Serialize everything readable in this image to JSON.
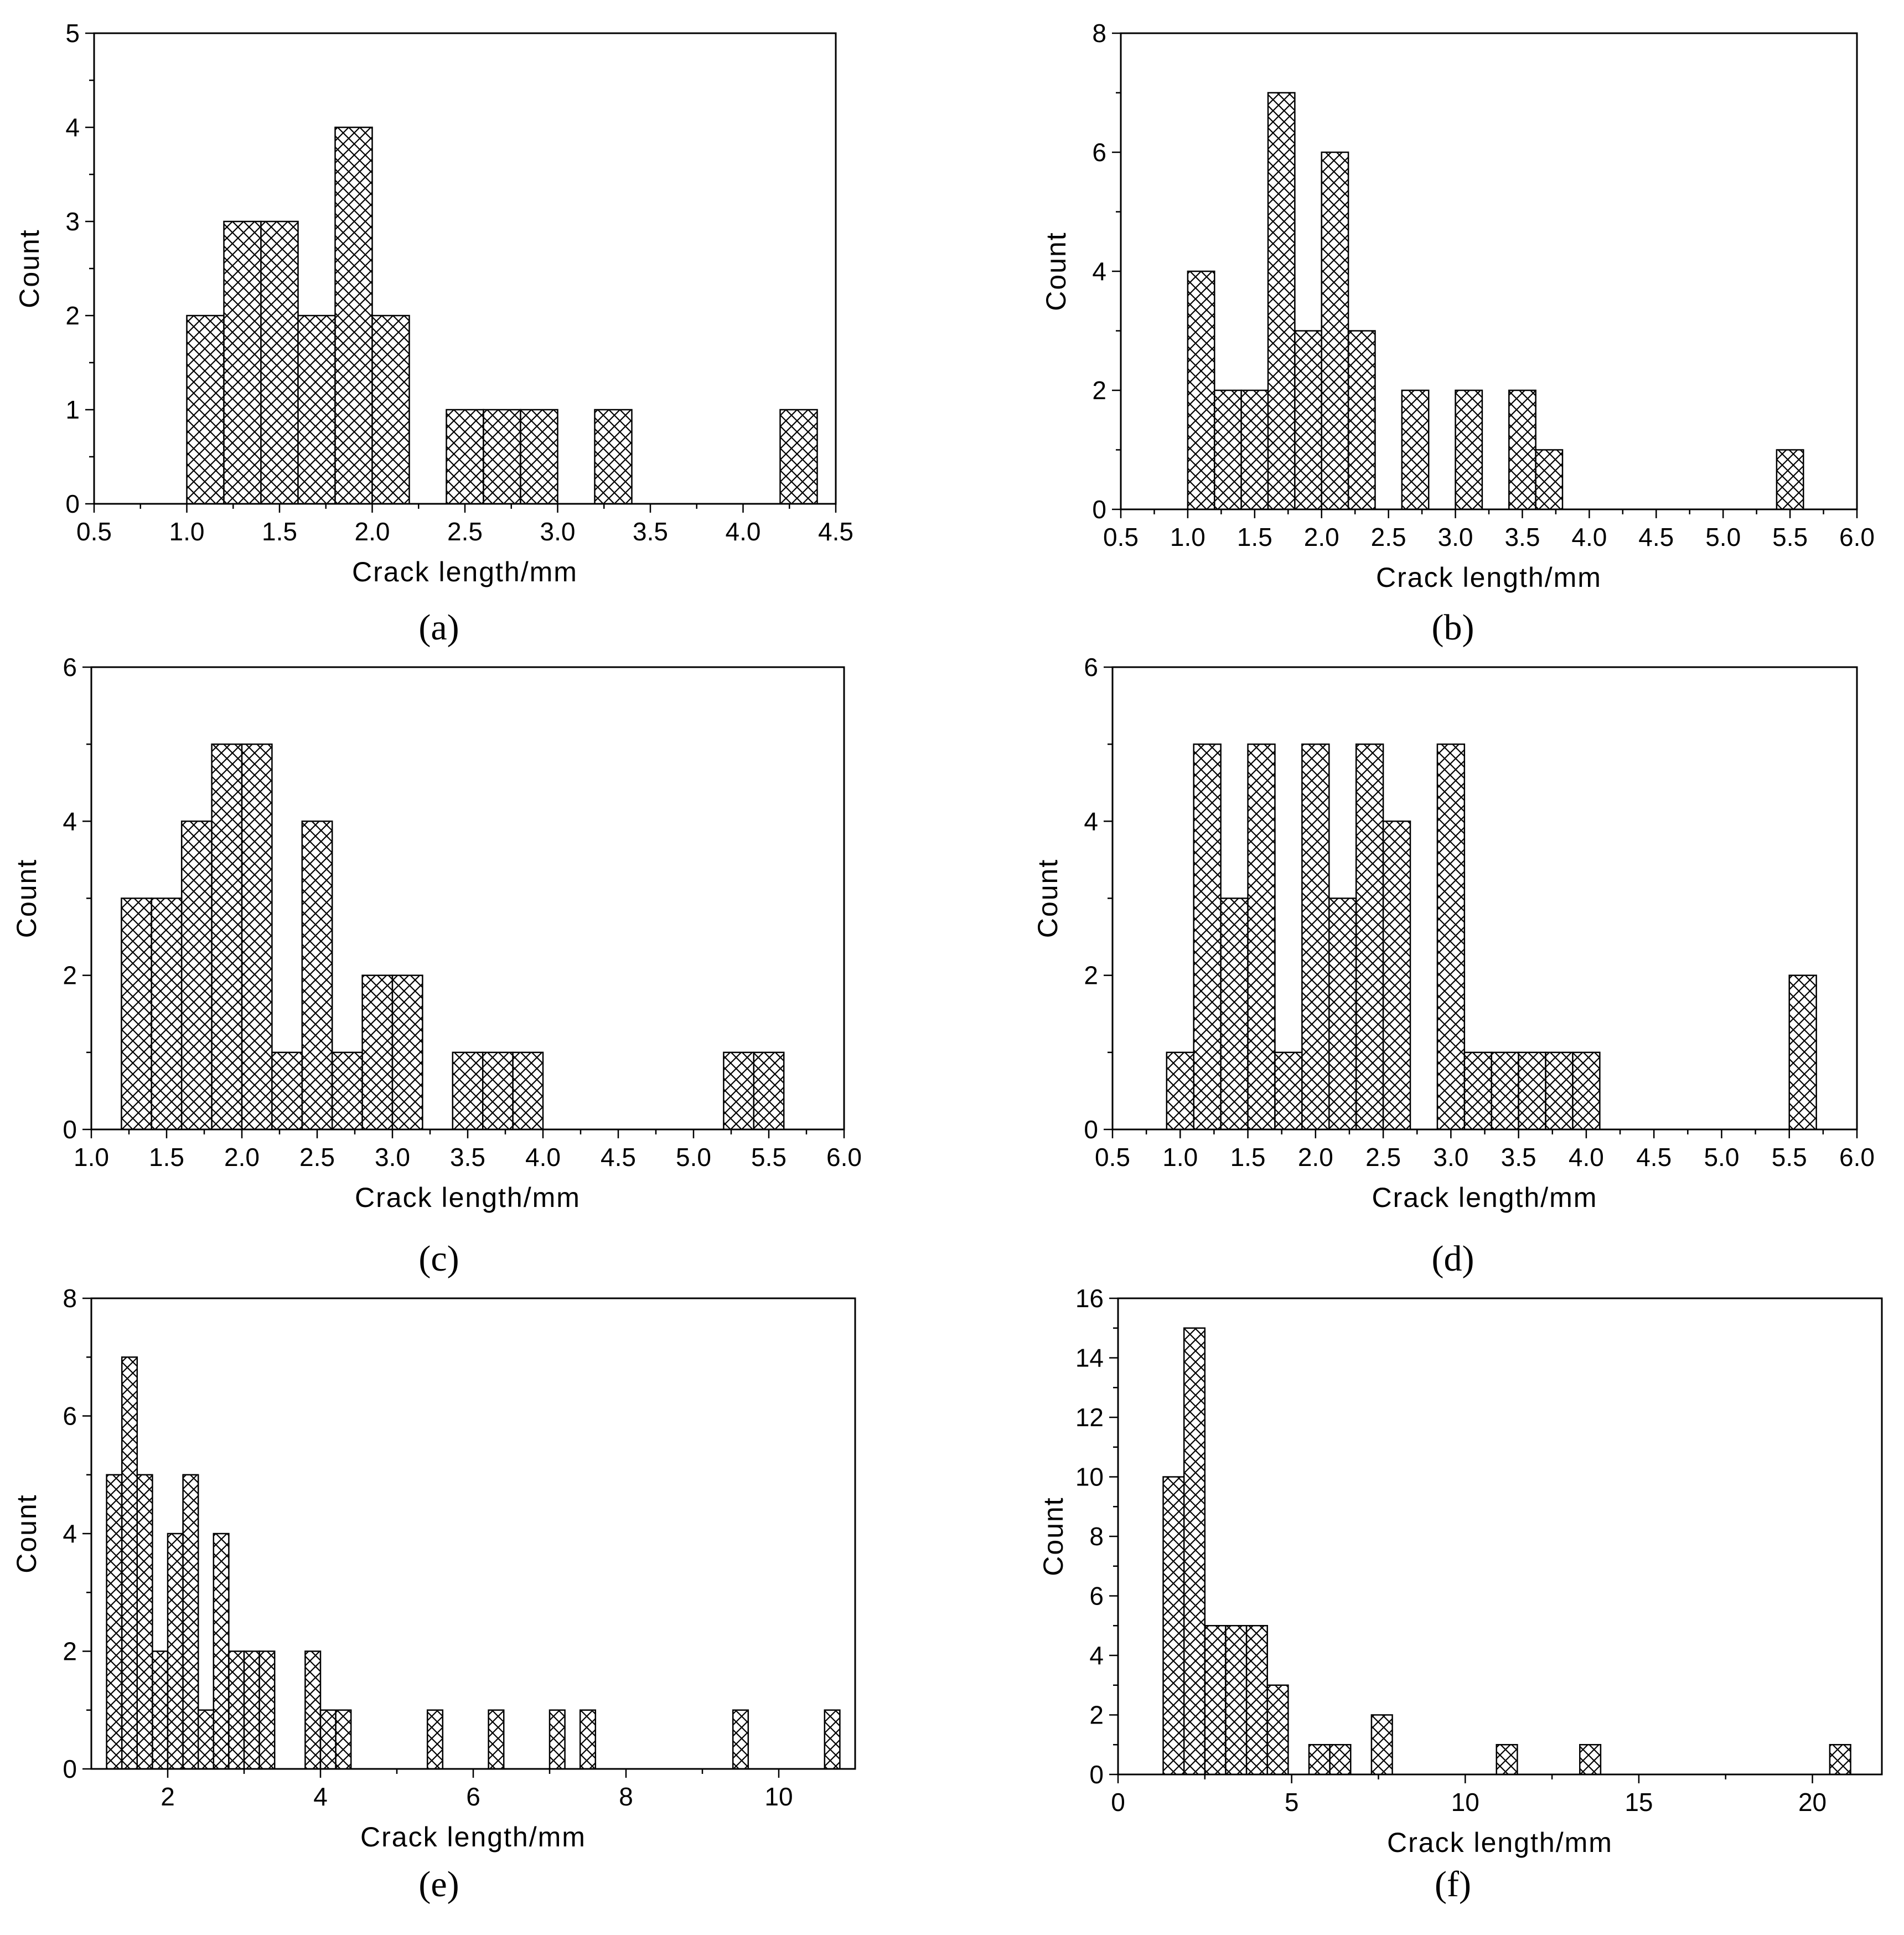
{
  "chart_data": [
    {
      "panel_label": "(a)",
      "type": "bar",
      "xlabel": "Crack length/mm",
      "ylabel": "Count",
      "xlim": [
        0.5,
        4.5
      ],
      "ylim": [
        0,
        5
      ],
      "x_ticks": [
        0.5,
        1.0,
        1.5,
        2.0,
        2.5,
        3.0,
        3.5,
        4.0,
        4.5
      ],
      "x_tick_labels": [
        "0.5",
        "1.0",
        "1.5",
        "2.0",
        "2.5",
        "3.0",
        "3.5",
        "4.0",
        "4.5"
      ],
      "y_ticks": [
        0,
        1,
        2,
        3,
        4,
        5
      ],
      "y_tick_labels": [
        "0",
        "1",
        "2",
        "3",
        "4",
        "5"
      ],
      "bin_width": 0.2,
      "bin_starts": [
        1.0,
        1.2,
        1.4,
        1.6,
        1.8,
        2.0,
        2.4,
        2.6,
        2.8,
        3.2,
        4.2
      ],
      "values": [
        2,
        3,
        3,
        2,
        4,
        2,
        1,
        1,
        1,
        1,
        1
      ]
    },
    {
      "panel_label": "(b)",
      "type": "bar",
      "xlabel": "Crack length/mm",
      "ylabel": "Count",
      "xlim": [
        0.5,
        6.0
      ],
      "ylim": [
        0,
        8
      ],
      "x_ticks": [
        0.5,
        1.0,
        1.5,
        2.0,
        2.5,
        3.0,
        3.5,
        4.0,
        4.5,
        5.0,
        5.5,
        6.0
      ],
      "x_tick_labels": [
        "0.5",
        "1.0",
        "1.5",
        "2.0",
        "2.5",
        "3.0",
        "3.5",
        "4.0",
        "4.5",
        "5.0",
        "5.5",
        "6.0"
      ],
      "y_ticks": [
        0,
        2,
        4,
        6,
        8
      ],
      "y_tick_labels": [
        "0",
        "2",
        "4",
        "6",
        "8"
      ],
      "bin_width": 0.2,
      "bin_starts": [
        1.0,
        1.2,
        1.4,
        1.6,
        1.8,
        2.0,
        2.2,
        2.6,
        3.0,
        3.4,
        3.6,
        5.4
      ],
      "values": [
        4,
        2,
        2,
        7,
        3,
        6,
        3,
        2,
        2,
        2,
        1,
        1
      ]
    },
    {
      "panel_label": "(c)",
      "type": "bar",
      "xlabel": "Crack length/mm",
      "ylabel": "Count",
      "xlim": [
        1.0,
        6.0
      ],
      "ylim": [
        0,
        6
      ],
      "x_ticks": [
        1.0,
        1.5,
        2.0,
        2.5,
        3.0,
        3.5,
        4.0,
        4.5,
        5.0,
        5.5,
        6.0
      ],
      "x_tick_labels": [
        "1.0",
        "1.5",
        "2.0",
        "2.5",
        "3.0",
        "3.5",
        "4.0",
        "4.5",
        "5.0",
        "5.5",
        "6.0"
      ],
      "y_ticks": [
        0,
        2,
        4,
        6
      ],
      "y_tick_labels": [
        "0",
        "2",
        "4",
        "6"
      ],
      "bin_width": 0.2,
      "bin_starts": [
        1.2,
        1.4,
        1.6,
        1.8,
        2.0,
        2.2,
        2.4,
        2.6,
        2.8,
        3.0,
        3.4,
        3.6,
        3.8,
        5.2,
        5.4
      ],
      "values": [
        3,
        3,
        4,
        5,
        5,
        1,
        4,
        1,
        2,
        2,
        1,
        1,
        1,
        1,
        1
      ]
    },
    {
      "panel_label": "(d)",
      "type": "bar",
      "xlabel": "Crack length/mm",
      "ylabel": "Count",
      "xlim": [
        0.5,
        6.0
      ],
      "ylim": [
        0,
        6
      ],
      "x_ticks": [
        0.5,
        1.0,
        1.5,
        2.0,
        2.5,
        3.0,
        3.5,
        4.0,
        4.5,
        5.0,
        5.5,
        6.0
      ],
      "x_tick_labels": [
        "0.5",
        "1.0",
        "1.5",
        "2.0",
        "2.5",
        "3.0",
        "3.5",
        "4.0",
        "4.5",
        "5.0",
        "5.5",
        "6.0"
      ],
      "y_ticks": [
        0,
        2,
        4,
        6
      ],
      "y_tick_labels": [
        "0",
        "2",
        "4",
        "6"
      ],
      "bin_width": 0.2,
      "bin_starts": [
        0.9,
        1.1,
        1.3,
        1.5,
        1.7,
        1.9,
        2.1,
        2.3,
        2.5,
        2.9,
        3.1,
        3.3,
        3.5,
        3.7,
        3.9,
        5.5
      ],
      "values": [
        1,
        5,
        3,
        5,
        1,
        5,
        3,
        5,
        4,
        5,
        1,
        1,
        1,
        1,
        1,
        2
      ]
    },
    {
      "panel_label": "(e)",
      "type": "bar",
      "xlabel": "Crack length/mm",
      "ylabel": "Count",
      "xlim": [
        1.0,
        11.0
      ],
      "ylim": [
        0,
        8
      ],
      "x_ticks": [
        2,
        4,
        6,
        8,
        10
      ],
      "x_tick_labels": [
        "2",
        "4",
        "6",
        "8",
        "10"
      ],
      "y_ticks": [
        0,
        2,
        4,
        6,
        8
      ],
      "y_tick_labels": [
        "0",
        "2",
        "4",
        "6",
        "8"
      ],
      "bin_width": 0.2,
      "bin_starts": [
        1.2,
        1.4,
        1.6,
        1.8,
        2.0,
        2.2,
        2.4,
        2.6,
        2.8,
        3.0,
        3.2,
        3.8,
        4.0,
        4.2,
        5.4,
        6.2,
        7.0,
        7.4,
        9.4,
        10.6
      ],
      "values": [
        5,
        7,
        5,
        2,
        4,
        5,
        1,
        4,
        2,
        2,
        2,
        2,
        1,
        1,
        1,
        1,
        1,
        1,
        1,
        1
      ]
    },
    {
      "panel_label": "(f)",
      "type": "bar",
      "xlabel": "Crack length/mm",
      "ylabel": "Count",
      "xlim": [
        0,
        22
      ],
      "ylim": [
        0,
        16
      ],
      "x_ticks": [
        0,
        5,
        10,
        15,
        20
      ],
      "x_tick_labels": [
        "0",
        "5",
        "10",
        "15",
        "20"
      ],
      "y_ticks": [
        0,
        2,
        4,
        6,
        8,
        10,
        12,
        14,
        16
      ],
      "y_tick_labels": [
        "0",
        "2",
        "4",
        "6",
        "8",
        "10",
        "12",
        "14",
        "16"
      ],
      "bin_width": 0.6,
      "bin_starts": [
        1.3,
        1.9,
        2.5,
        3.1,
        3.7,
        4.3,
        5.5,
        6.1,
        7.3,
        10.9,
        13.3,
        20.5
      ],
      "values": [
        10,
        15,
        5,
        5,
        5,
        3,
        1,
        1,
        2,
        1,
        1,
        1
      ]
    }
  ]
}
